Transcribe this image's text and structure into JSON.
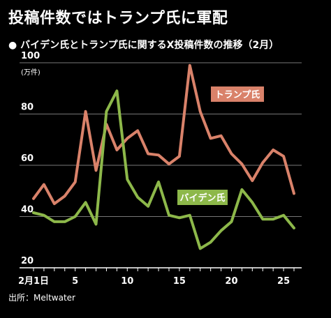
{
  "title": "投稿件数ではトランプ氏に軍配",
  "subtitle": "● バイデン氏とトランプ氏に関するX投稿件数の推移（2月）",
  "source": "出所：Meltwater",
  "chart_data": {
    "type": "line",
    "y_unit": "(万件)",
    "ylim": [
      20,
      100
    ],
    "yticks": [
      "20",
      "40",
      "60",
      "80",
      "100"
    ],
    "x": [
      1,
      2,
      3,
      4,
      5,
      6,
      7,
      8,
      9,
      10,
      11,
      12,
      13,
      14,
      15,
      16,
      17,
      18,
      19,
      20,
      21,
      22,
      23,
      24,
      25,
      26
    ],
    "xlim": [
      1,
      26
    ],
    "xtick_labels": [
      {
        "x": 1,
        "label": "2月1日"
      },
      {
        "x": 5,
        "label": "5"
      },
      {
        "x": 10,
        "label": "10"
      },
      {
        "x": 15,
        "label": "15"
      },
      {
        "x": 20,
        "label": "20"
      },
      {
        "x": 25,
        "label": "25"
      }
    ],
    "grid": "horizontal",
    "series": [
      {
        "name": "トランプ氏",
        "color": "#d9826a",
        "values": [
          47,
          52.5,
          45,
          48,
          53.5,
          81,
          58,
          76,
          66,
          70.5,
          73.5,
          64.5,
          64,
          60.5,
          63.5,
          99,
          81,
          70.5,
          71.5,
          64.5,
          60.5,
          54,
          61,
          66,
          63.5,
          49
        ]
      },
      {
        "name": "バイデン氏",
        "color": "#8db84a",
        "values": [
          41.5,
          40.5,
          38,
          38,
          40,
          45.5,
          37,
          81,
          89,
          54.5,
          47.5,
          44,
          53.5,
          40.5,
          39.5,
          40.5,
          27.5,
          30,
          34.5,
          38,
          50.5,
          45.5,
          39,
          39,
          40.5,
          35.5
        ]
      }
    ]
  }
}
